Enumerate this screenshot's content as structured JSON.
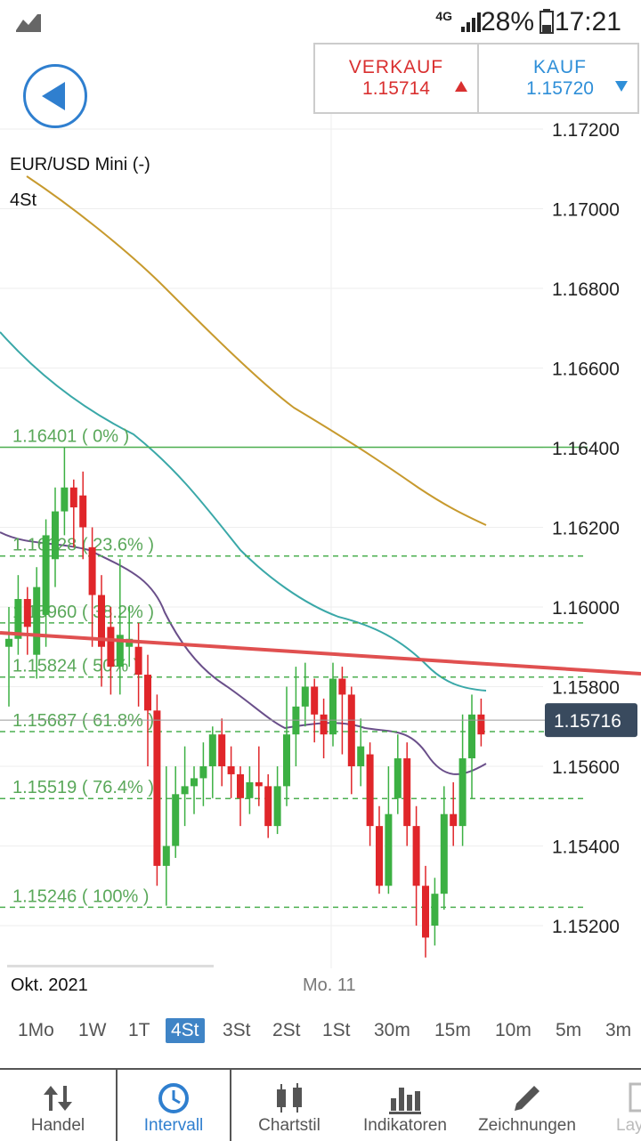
{
  "status_bar": {
    "network": "4G",
    "battery": "28%",
    "time": "17:21"
  },
  "trade": {
    "sell_label": "VERKAUF",
    "sell_price": "1.15714",
    "buy_label": "KAUF",
    "buy_price": "1.15720"
  },
  "chart_data": {
    "type": "candlestick",
    "instrument": "EUR/USD Mini (-)",
    "timeframe": "4St",
    "ylim": [
      1.152,
      1.1722
    ],
    "y_ticks": [
      "1.17200",
      "1.17000",
      "1.16800",
      "1.16600",
      "1.16400",
      "1.16200",
      "1.16000",
      "1.15800",
      "1.15600",
      "1.15400",
      "1.15200"
    ],
    "x_labels": [
      "Okt. 2021",
      "Mo. 11"
    ],
    "current_price": "1.15716",
    "fibonacci": [
      {
        "label": "1.16401 ( 0% )",
        "value": 1.16401
      },
      {
        "label": "1.16128 ( 23.6% )",
        "value": 1.16128
      },
      {
        "label": "1.15960 ( 38.2% )",
        "value": 1.1596
      },
      {
        "label": "1.15824 ( 50% )",
        "value": 1.15824
      },
      {
        "label": "1.15687 ( 61.8% )",
        "value": 1.15687
      },
      {
        "label": "1.15519 ( 76.4% )",
        "value": 1.15519
      },
      {
        "label": "1.15246 ( 100% )",
        "value": 1.15246
      }
    ],
    "candles": [
      [
        1.159,
        1.1592,
        1.16,
        1.1575
      ],
      [
        1.1592,
        1.1602,
        1.1608,
        1.1588
      ],
      [
        1.1602,
        1.1595,
        1.1605,
        1.1588
      ],
      [
        1.1588,
        1.1605,
        1.161,
        1.1582
      ],
      [
        1.1598,
        1.1618,
        1.1622,
        1.159
      ],
      [
        1.1612,
        1.1624,
        1.163,
        1.1605
      ],
      [
        1.1624,
        1.163,
        1.164,
        1.1618
      ],
      [
        1.163,
        1.1625,
        1.1632,
        1.1615
      ],
      [
        1.1628,
        1.162,
        1.1634,
        1.1612
      ],
      [
        1.1615,
        1.1603,
        1.162,
        1.159
      ],
      [
        1.1603,
        1.159,
        1.1608,
        1.158
      ],
      [
        1.1595,
        1.1585,
        1.16,
        1.1578
      ],
      [
        1.1585,
        1.1593,
        1.1612,
        1.1578
      ],
      [
        1.159,
        1.1592,
        1.16,
        1.1585
      ],
      [
        1.159,
        1.1583,
        1.1596,
        1.1575
      ],
      [
        1.1583,
        1.1574,
        1.1588,
        1.156
      ],
      [
        1.1574,
        1.1535,
        1.1578,
        1.153
      ],
      [
        1.1535,
        1.154,
        1.156,
        1.1525
      ],
      [
        1.154,
        1.1553,
        1.156,
        1.1537
      ],
      [
        1.1553,
        1.1555,
        1.1565,
        1.1545
      ],
      [
        1.1555,
        1.1557,
        1.156,
        1.1548
      ],
      [
        1.1557,
        1.156,
        1.1566,
        1.155
      ],
      [
        1.156,
        1.1568,
        1.157,
        1.1552
      ],
      [
        1.1568,
        1.156,
        1.1572,
        1.1555
      ],
      [
        1.156,
        1.1558,
        1.1565,
        1.1552
      ],
      [
        1.1558,
        1.1552,
        1.156,
        1.1545
      ],
      [
        1.1552,
        1.1556,
        1.156,
        1.1548
      ],
      [
        1.1556,
        1.1555,
        1.1565,
        1.155
      ],
      [
        1.1555,
        1.1545,
        1.1558,
        1.1542
      ],
      [
        1.1545,
        1.1555,
        1.156,
        1.1543
      ],
      [
        1.1555,
        1.1568,
        1.158,
        1.155
      ],
      [
        1.1568,
        1.1575,
        1.1585,
        1.156
      ],
      [
        1.1575,
        1.158,
        1.1586,
        1.157
      ],
      [
        1.158,
        1.1573,
        1.1582,
        1.1566
      ],
      [
        1.1573,
        1.1568,
        1.1577,
        1.1562
      ],
      [
        1.1568,
        1.1582,
        1.1586,
        1.1565
      ],
      [
        1.1582,
        1.1578,
        1.1585,
        1.1563
      ],
      [
        1.1578,
        1.156,
        1.158,
        1.1553
      ],
      [
        1.156,
        1.1565,
        1.1572,
        1.1555
      ],
      [
        1.1563,
        1.1545,
        1.1566,
        1.154
      ],
      [
        1.1545,
        1.153,
        1.155,
        1.1528
      ],
      [
        1.153,
        1.1548,
        1.156,
        1.1528
      ],
      [
        1.1552,
        1.1562,
        1.1568,
        1.1548
      ],
      [
        1.1562,
        1.1545,
        1.1566,
        1.154
      ],
      [
        1.1545,
        1.153,
        1.155,
        1.152
      ],
      [
        1.153,
        1.1517,
        1.1535,
        1.1512
      ],
      [
        1.152,
        1.1528,
        1.1532,
        1.1515
      ],
      [
        1.1528,
        1.1548,
        1.1555,
        1.1524
      ],
      [
        1.1548,
        1.1545,
        1.1556,
        1.154
      ],
      [
        1.1545,
        1.1562,
        1.1573,
        1.154
      ],
      [
        1.1562,
        1.1573,
        1.1578,
        1.1552
      ],
      [
        1.1573,
        1.1568,
        1.1577,
        1.1565
      ]
    ]
  },
  "intervals": [
    "1Mo",
    "1W",
    "1T",
    "4St",
    "3St",
    "2St",
    "1St",
    "30m",
    "15m",
    "10m",
    "5m",
    "3m"
  ],
  "active_interval": "4St",
  "tabs": [
    {
      "label": "Handel",
      "icon": "swap-icon"
    },
    {
      "label": "Intervall",
      "icon": "clock-icon"
    },
    {
      "label": "Chartstil",
      "icon": "candles-icon"
    },
    {
      "label": "Indikatoren",
      "icon": "bars-icon"
    },
    {
      "label": "Zeichnungen",
      "icon": "pencil-icon"
    },
    {
      "label": "Lay",
      "icon": "layout-icon"
    }
  ]
}
